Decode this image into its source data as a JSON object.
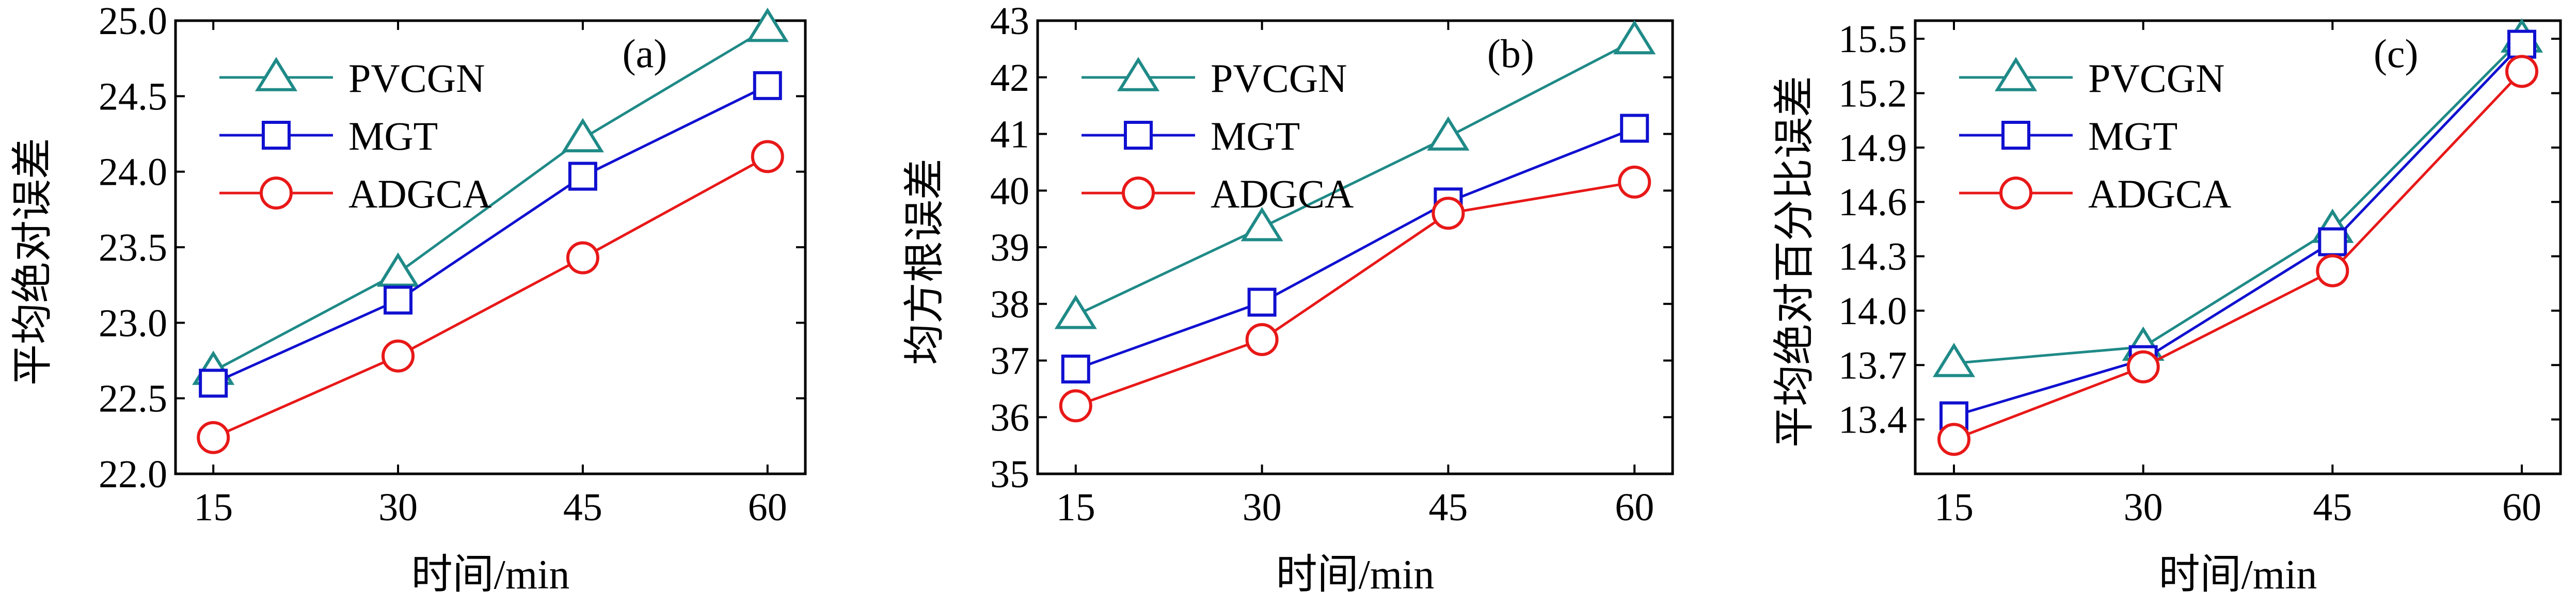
{
  "chart_data": [
    {
      "type": "line",
      "panel_label": "(a)",
      "xlabel": "时间/min",
      "ylabel": "平均绝对误差",
      "categories": [
        "15",
        "30",
        "45",
        "60"
      ],
      "ylim": [
        22.0,
        25.0
      ],
      "yticks": [
        "22.0",
        "22.5",
        "23.0",
        "23.5",
        "24.0",
        "24.5",
        "25.0"
      ],
      "grid": false,
      "legend_position": "top-left",
      "series": [
        {
          "name": "PVCGN",
          "values": [
            22.68,
            23.33,
            24.22,
            24.95
          ],
          "color": "#1f8a87",
          "marker": "triangle"
        },
        {
          "name": "MGT",
          "values": [
            22.6,
            23.15,
            23.97,
            24.57
          ],
          "color": "#1010d0",
          "marker": "square"
        },
        {
          "name": "ADGCA",
          "values": [
            22.24,
            22.78,
            23.43,
            24.1
          ],
          "color": "#e81818",
          "marker": "circle"
        }
      ]
    },
    {
      "type": "line",
      "panel_label": "(b)",
      "xlabel": "时间/min",
      "ylabel": "均方根误差",
      "categories": [
        "15",
        "30",
        "45",
        "60"
      ],
      "ylim": [
        35,
        43
      ],
      "yticks": [
        "35",
        "36",
        "37",
        "38",
        "39",
        "40",
        "41",
        "42",
        "43"
      ],
      "grid": false,
      "legend_position": "top-left",
      "series": [
        {
          "name": "PVCGN",
          "values": [
            37.8,
            39.35,
            40.95,
            42.65
          ],
          "color": "#1f8a87",
          "marker": "triangle"
        },
        {
          "name": "MGT",
          "values": [
            36.85,
            38.03,
            39.8,
            41.1
          ],
          "color": "#1010d0",
          "marker": "square"
        },
        {
          "name": "ADGCA",
          "values": [
            36.2,
            37.37,
            39.6,
            40.15
          ],
          "color": "#e81818",
          "marker": "circle"
        }
      ]
    },
    {
      "type": "line",
      "panel_label": "(c)",
      "xlabel": "时间/min",
      "ylabel": "平均绝对百分比误差",
      "categories": [
        "15",
        "30",
        "45",
        "60"
      ],
      "ylim": [
        13.1,
        15.6
      ],
      "yticks": [
        "13.4",
        "13.7",
        "14.0",
        "14.3",
        "14.6",
        "14.9",
        "15.2",
        "15.5"
      ],
      "grid": false,
      "legend_position": "top-left",
      "series": [
        {
          "name": "PVCGN",
          "values": [
            13.71,
            13.8,
            14.45,
            15.5
          ],
          "color": "#1f8a87",
          "marker": "triangle"
        },
        {
          "name": "MGT",
          "values": [
            13.42,
            13.73,
            14.38,
            15.47
          ],
          "color": "#1010d0",
          "marker": "square"
        },
        {
          "name": "ADGCA",
          "values": [
            13.29,
            13.69,
            14.22,
            15.32
          ],
          "color": "#e81818",
          "marker": "circle"
        }
      ]
    }
  ]
}
